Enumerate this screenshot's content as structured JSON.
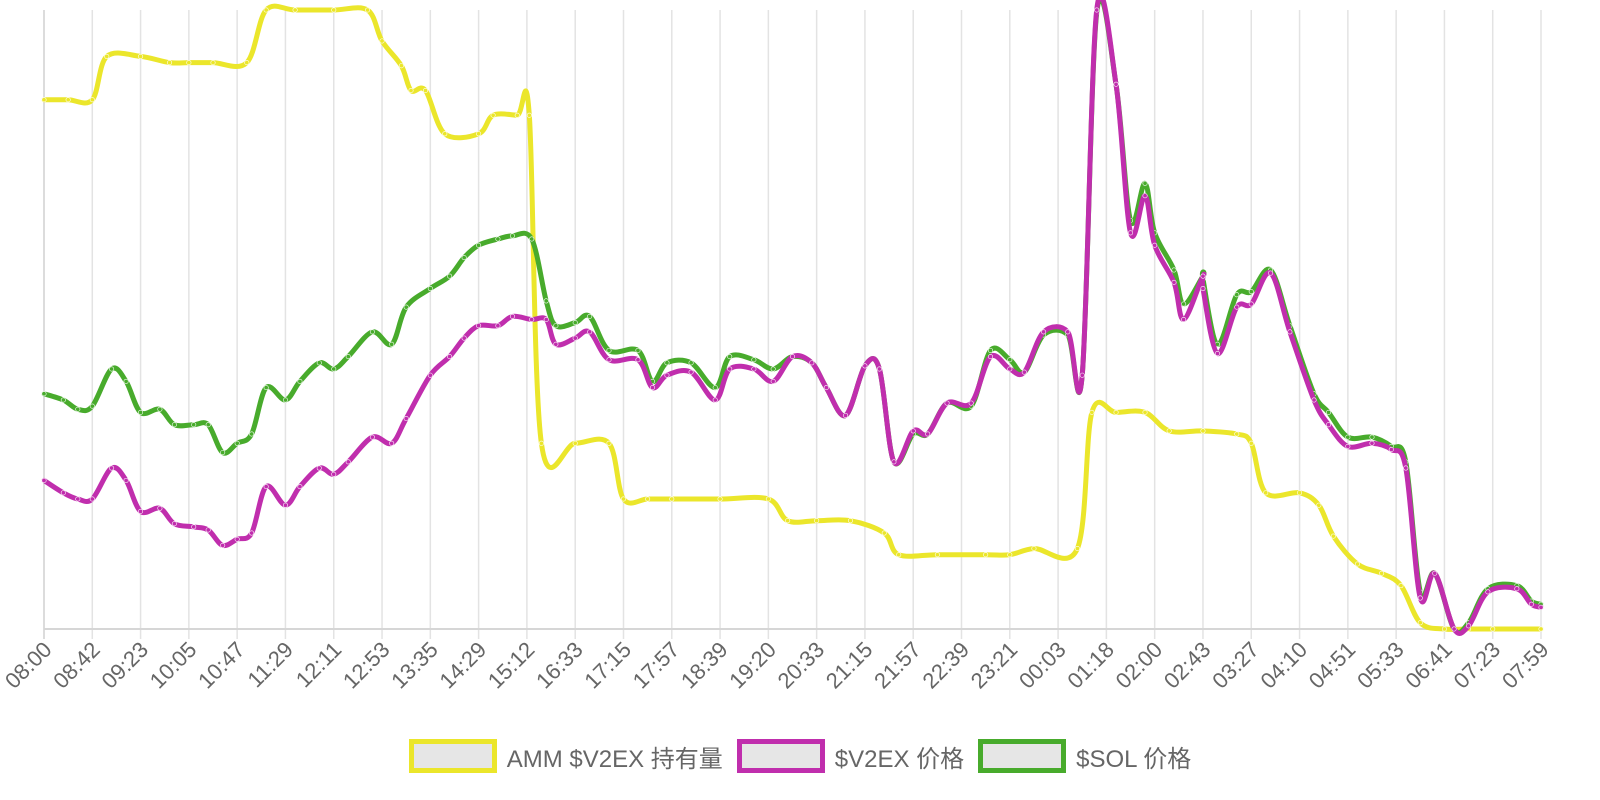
{
  "chart_data": {
    "type": "line",
    "grid": "vertical",
    "legend_position": "bottom",
    "x_tick_labels": [
      "08:00",
      "08:42",
      "09:23",
      "10:05",
      "10:47",
      "11:29",
      "12:11",
      "12:53",
      "13:35",
      "14:29",
      "15:12",
      "16:33",
      "17:15",
      "17:57",
      "18:39",
      "19:20",
      "20:33",
      "21:15",
      "21:57",
      "22:39",
      "23:21",
      "00:03",
      "01:18",
      "02:00",
      "02:43",
      "03:27",
      "04:10",
      "04:51",
      "05:33",
      "06:41",
      "07:23",
      "07:59"
    ],
    "y_axis_labels_shown": false,
    "ylim": [
      0,
      100
    ],
    "series": [
      {
        "name": "AMM $V2EX 持有量",
        "color": "#ebe62b",
        "values": [
          [
            0,
            85.5
          ],
          [
            0.5,
            85.5
          ],
          [
            1,
            85.5
          ],
          [
            1.3,
            92.5
          ],
          [
            2,
            92.5
          ],
          [
            2.6,
            91.5
          ],
          [
            3,
            91.5
          ],
          [
            3.5,
            91.5
          ],
          [
            4.2,
            91.5
          ],
          [
            4.6,
            100
          ],
          [
            5.2,
            100
          ],
          [
            6,
            100
          ],
          [
            6.7,
            100
          ],
          [
            7,
            95
          ],
          [
            7.4,
            91
          ],
          [
            7.6,
            87
          ],
          [
            7.9,
            87
          ],
          [
            8.3,
            80
          ],
          [
            9,
            80
          ],
          [
            9.3,
            83
          ],
          [
            9.8,
            83
          ],
          [
            10.05,
            83
          ],
          [
            10.3,
            30
          ],
          [
            11,
            30
          ],
          [
            11.7,
            30
          ],
          [
            12,
            21
          ],
          [
            12.5,
            21
          ],
          [
            13,
            21
          ],
          [
            14,
            21
          ],
          [
            15,
            21
          ],
          [
            15.4,
            17.5
          ],
          [
            16,
            17.5
          ],
          [
            16.7,
            17.5
          ],
          [
            17.4,
            15.5
          ],
          [
            17.7,
            12
          ],
          [
            18.5,
            12
          ],
          [
            19.5,
            12
          ],
          [
            20,
            12
          ],
          [
            20.5,
            13
          ],
          [
            21.4,
            13
          ],
          [
            21.7,
            35
          ],
          [
            22.2,
            35
          ],
          [
            22.8,
            35
          ],
          [
            23.3,
            32
          ],
          [
            24,
            32
          ],
          [
            24.7,
            31.5
          ],
          [
            25,
            30
          ],
          [
            25.3,
            22
          ],
          [
            26,
            22
          ],
          [
            26.4,
            20
          ],
          [
            26.7,
            15
          ],
          [
            27.2,
            10.5
          ],
          [
            27.7,
            9
          ],
          [
            28.1,
            7
          ],
          [
            28.5,
            1
          ],
          [
            29,
            0
          ],
          [
            29.5,
            0
          ],
          [
            30,
            0
          ],
          [
            31,
            0
          ]
        ]
      },
      {
        "name": "$V2EX 价格",
        "color": "#c02ead",
        "values": [
          [
            0,
            24
          ],
          [
            0.4,
            22
          ],
          [
            0.7,
            21
          ],
          [
            1,
            21
          ],
          [
            1.4,
            26
          ],
          [
            1.7,
            24
          ],
          [
            2,
            19
          ],
          [
            2.4,
            19.5
          ],
          [
            2.7,
            17
          ],
          [
            3.1,
            16.5
          ],
          [
            3.4,
            16
          ],
          [
            3.7,
            13.5
          ],
          [
            4,
            14.5
          ],
          [
            4.3,
            15.5
          ],
          [
            4.6,
            23
          ],
          [
            5,
            20
          ],
          [
            5.3,
            23
          ],
          [
            5.7,
            26
          ],
          [
            6,
            25
          ],
          [
            6.3,
            27
          ],
          [
            6.8,
            31
          ],
          [
            7.2,
            30
          ],
          [
            7.5,
            34
          ],
          [
            8,
            41
          ],
          [
            8.4,
            44
          ],
          [
            8.7,
            47
          ],
          [
            9,
            49
          ],
          [
            9.4,
            49
          ],
          [
            9.7,
            50.5
          ],
          [
            10.1,
            50
          ],
          [
            10.4,
            50
          ],
          [
            10.6,
            46
          ],
          [
            11,
            47
          ],
          [
            11.3,
            48
          ],
          [
            11.7,
            43.5
          ],
          [
            12.3,
            43.5
          ],
          [
            12.6,
            39
          ],
          [
            12.9,
            41
          ],
          [
            13.4,
            41.5
          ],
          [
            13.9,
            37
          ],
          [
            14.2,
            42
          ],
          [
            14.7,
            42
          ],
          [
            15.1,
            40
          ],
          [
            15.5,
            44
          ],
          [
            15.9,
            43
          ],
          [
            16.2,
            39
          ],
          [
            16.6,
            34.5
          ],
          [
            17,
            42.5
          ],
          [
            17.3,
            42
          ],
          [
            17.6,
            27
          ],
          [
            18,
            32
          ],
          [
            18.3,
            31.5
          ],
          [
            18.7,
            36.5
          ],
          [
            19.2,
            36.5
          ],
          [
            19.6,
            44
          ],
          [
            20,
            42
          ],
          [
            20.3,
            41.5
          ],
          [
            20.7,
            48
          ],
          [
            21.2,
            48
          ],
          [
            21.5,
            41
          ],
          [
            21.8,
            100
          ],
          [
            22.2,
            88
          ],
          [
            22.5,
            64
          ],
          [
            22.8,
            70
          ],
          [
            23,
            62
          ],
          [
            23.4,
            56
          ],
          [
            23.6,
            50
          ],
          [
            24,
            57
          ],
          [
            24,
            55
          ],
          [
            24.3,
            44.5
          ],
          [
            24.7,
            52
          ],
          [
            25,
            52.5
          ],
          [
            25.4,
            57.5
          ],
          [
            25.8,
            48
          ],
          [
            26.3,
            37
          ],
          [
            26.6,
            33
          ],
          [
            27,
            29.5
          ],
          [
            27.5,
            30
          ],
          [
            27.9,
            29
          ],
          [
            28.2,
            26
          ],
          [
            28.5,
            5
          ],
          [
            28.8,
            9
          ],
          [
            29.2,
            0
          ],
          [
            29.5,
            0.5
          ],
          [
            29.9,
            6
          ],
          [
            30.5,
            6.5
          ],
          [
            30.8,
            4
          ],
          [
            31,
            3.5
          ]
        ]
      },
      {
        "name": "$SOL 价格",
        "color": "#48ab2c",
        "values": [
          [
            0,
            38
          ],
          [
            0.4,
            37
          ],
          [
            0.7,
            35.5
          ],
          [
            1,
            36
          ],
          [
            1.4,
            42
          ],
          [
            1.7,
            40
          ],
          [
            2,
            35
          ],
          [
            2.4,
            35.5
          ],
          [
            2.7,
            33
          ],
          [
            3.1,
            33
          ],
          [
            3.4,
            33
          ],
          [
            3.7,
            28.5
          ],
          [
            4,
            30
          ],
          [
            4.3,
            31.5
          ],
          [
            4.6,
            39
          ],
          [
            5,
            37
          ],
          [
            5.3,
            40
          ],
          [
            5.7,
            43
          ],
          [
            6,
            42
          ],
          [
            6.3,
            44
          ],
          [
            6.8,
            48
          ],
          [
            7.2,
            46
          ],
          [
            7.5,
            52
          ],
          [
            8,
            55
          ],
          [
            8.4,
            57
          ],
          [
            8.7,
            60
          ],
          [
            9,
            62
          ],
          [
            9.4,
            63
          ],
          [
            9.7,
            63.5
          ],
          [
            10.1,
            63
          ],
          [
            10.4,
            53
          ],
          [
            10.6,
            49
          ],
          [
            11,
            49.5
          ],
          [
            11.3,
            50.5
          ],
          [
            11.7,
            45
          ],
          [
            12.3,
            45
          ],
          [
            12.6,
            40
          ],
          [
            12.9,
            43
          ],
          [
            13.4,
            43
          ],
          [
            13.9,
            39
          ],
          [
            14.2,
            44
          ],
          [
            14.7,
            43.5
          ],
          [
            15.1,
            42
          ],
          [
            15.5,
            44
          ],
          [
            15.9,
            43
          ],
          [
            16.2,
            39
          ],
          [
            16.6,
            34.5
          ],
          [
            17,
            42.5
          ],
          [
            17.3,
            42
          ],
          [
            17.6,
            27
          ],
          [
            18,
            31.5
          ],
          [
            18.3,
            31.5
          ],
          [
            18.7,
            36.5
          ],
          [
            19.2,
            36
          ],
          [
            19.6,
            45
          ],
          [
            20,
            43.5
          ],
          [
            20.3,
            41.5
          ],
          [
            20.7,
            47.5
          ],
          [
            21.2,
            47.5
          ],
          [
            21.5,
            41
          ],
          [
            21.8,
            99.5
          ],
          [
            22.2,
            88
          ],
          [
            22.5,
            66
          ],
          [
            22.8,
            72
          ],
          [
            23,
            64
          ],
          [
            23.4,
            58
          ],
          [
            23.6,
            52.5
          ],
          [
            24,
            57
          ],
          [
            24,
            56.5
          ],
          [
            24.3,
            46
          ],
          [
            24.7,
            54
          ],
          [
            25,
            54.5
          ],
          [
            25.4,
            58
          ],
          [
            25.8,
            49
          ],
          [
            26.3,
            38
          ],
          [
            26.6,
            35
          ],
          [
            27,
            31
          ],
          [
            27.5,
            31
          ],
          [
            27.9,
            29.5
          ],
          [
            28.2,
            27
          ],
          [
            28.5,
            6
          ],
          [
            28.8,
            9
          ],
          [
            29.2,
            0
          ],
          [
            29.5,
            1
          ],
          [
            29.9,
            6.5
          ],
          [
            30.5,
            7
          ],
          [
            30.8,
            4.5
          ],
          [
            31,
            4
          ]
        ]
      }
    ]
  },
  "legend": {
    "items": [
      {
        "label": "AMM $V2EX 持有量",
        "color": "#ebe62b"
      },
      {
        "label": "$V2EX 价格",
        "color": "#c02ead"
      },
      {
        "label": "$SOL 价格",
        "color": "#48ab2c"
      }
    ]
  }
}
